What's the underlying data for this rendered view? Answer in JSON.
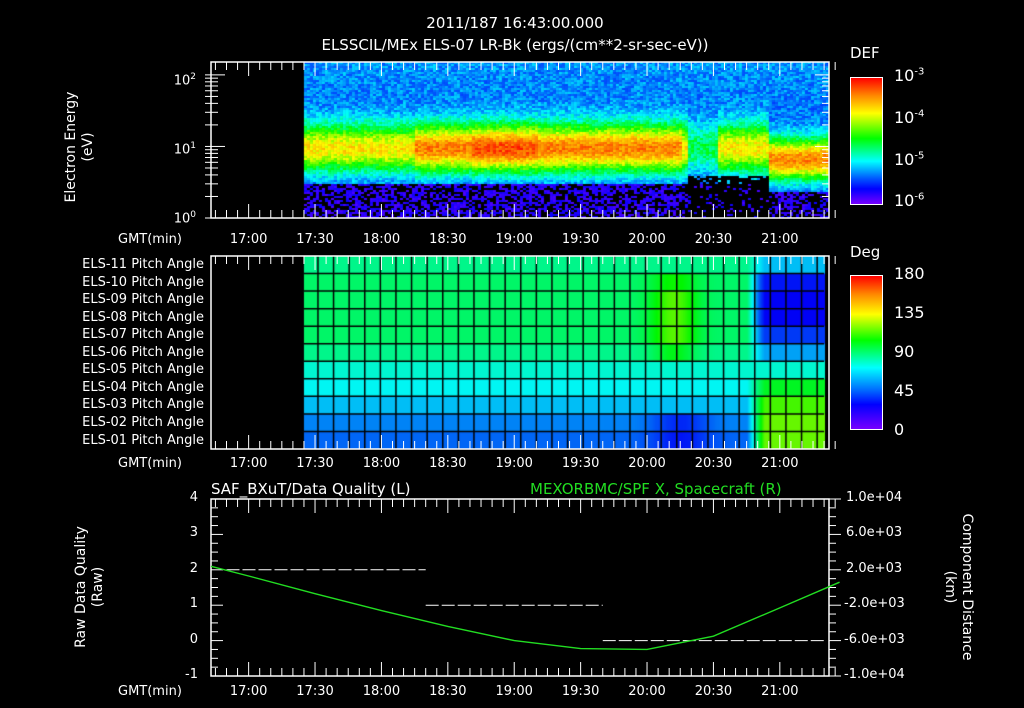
{
  "header": {
    "timestamp": "2011/187 16:43:00.000",
    "subtitle": "ELSSCIL/MEx ELS-07 LR-Bk  (ergs/(cm**2-sr-sec-eV))"
  },
  "panel1": {
    "ylabel_line1": "Electron Energy",
    "ylabel_line2": "(eV)",
    "yticks": [
      {
        "base": "10",
        "exp": "2"
      },
      {
        "base": "10",
        "exp": "1"
      },
      {
        "base": "10",
        "exp": "0"
      }
    ],
    "xaxis_label": "GMT(min)",
    "colorbar": {
      "title": "DEF",
      "ticks": [
        {
          "base": "10",
          "exp": "-3"
        },
        {
          "base": "10",
          "exp": "-4"
        },
        {
          "base": "10",
          "exp": "-5"
        },
        {
          "base": "10",
          "exp": "-6"
        }
      ]
    }
  },
  "panel2": {
    "rows": [
      "ELS-11 Pitch Angle",
      "ELS-10 Pitch Angle",
      "ELS-09 Pitch Angle",
      "ELS-08 Pitch Angle",
      "ELS-07 Pitch Angle",
      "ELS-06 Pitch Angle",
      "ELS-05 Pitch Angle",
      "ELS-04 Pitch Angle",
      "ELS-03 Pitch Angle",
      "ELS-02 Pitch Angle",
      "ELS-01 Pitch Angle"
    ],
    "xaxis_label": "GMT(min)",
    "colorbar": {
      "title": "Deg",
      "ticks": [
        "180",
        "135",
        "90",
        "45",
        "0"
      ]
    }
  },
  "panel3": {
    "title_left": "SAF_BXuT/Data Quality (L)",
    "title_right": "MEXORBMC/SPF X, Spacecraft (R)",
    "ylabel_left_line1": "Raw Data Quality",
    "ylabel_left_line2": "(Raw)",
    "ylabel_right_line1": "Component Distance",
    "ylabel_right_line2": "(km)",
    "yticks_left": [
      "4",
      "3",
      "2",
      "1",
      "0",
      "-1"
    ],
    "yticks_right": [
      "1.0e+04",
      "6.0e+03",
      "2.0e+03",
      "-2.0e+03",
      "-6.0e+03",
      "-1.0e+04"
    ],
    "xaxis_label": "GMT(min)"
  },
  "xticks": [
    "17:00",
    "17:30",
    "18:00",
    "18:30",
    "19:00",
    "19:30",
    "20:00",
    "20:30",
    "21:00"
  ],
  "colors": {
    "frame": "#ffffff",
    "right_series": "#22dd22",
    "background": "#000000"
  },
  "chart_data": [
    {
      "type": "heatmap",
      "title": "ELSSCIL/MEx ELS-07 LR-Bk  (ergs/(cm**2-sr-sec-eV))",
      "xlabel": "GMT(min)",
      "ylabel": "Electron Energy (eV)",
      "yscale": "log",
      "ylim": [
        1,
        150
      ],
      "xlim": [
        "16:43",
        "21:27"
      ],
      "x_ticks": [
        "17:00",
        "17:30",
        "18:00",
        "18:30",
        "19:00",
        "19:30",
        "20:00",
        "20:30",
        "21:00"
      ],
      "colorbar": {
        "label": "DEF",
        "scale": "log",
        "range": [
          1e-06,
          0.001
        ]
      },
      "data_start": "17:25",
      "notes": "Peak flux (~1e-4) band between ~5-30 eV from 18:15-20:15; gap near 20:20-20:30; enhanced band 4-20 eV after 20:55"
    },
    {
      "type": "heatmap",
      "title": "Pitch Angle",
      "xlabel": "GMT(min)",
      "categories": [
        "ELS-11",
        "ELS-10",
        "ELS-09",
        "ELS-08",
        "ELS-07",
        "ELS-06",
        "ELS-05",
        "ELS-04",
        "ELS-03",
        "ELS-02",
        "ELS-01"
      ],
      "colorbar": {
        "label": "Deg",
        "range": [
          0,
          180
        ]
      },
      "xlim": [
        "16:43",
        "21:27"
      ],
      "data_start": "17:25",
      "data_end": "21:20",
      "row_values_typical": [
        95,
        100,
        100,
        100,
        100,
        95,
        85,
        80,
        70,
        60,
        55
      ],
      "notes": "ELS-08/09 reach ~125 deg near 20:10; ELS-09..11 drop to ~30 deg after 20:50; ELS-01..03 rise to ~130 deg after 20:55; ELS-01/02 dip to ~40 deg near 20:15"
    },
    {
      "type": "line",
      "title_left": "SAF_BXuT/Data Quality (L)",
      "title_right": "MEXORBMC/SPF X, Spacecraft (R)",
      "xlabel": "GMT(min)",
      "ylabel_left": "Raw Data Quality (Raw)",
      "ylabel_right": "Component Distance (km)",
      "ylim_left": [
        -1,
        4
      ],
      "ylim_right": [
        -10000,
        10000
      ],
      "series": [
        {
          "name": "SAF_BXuT/Data Quality",
          "axis": "left",
          "x": [
            "16:50",
            "18:20",
            "18:20",
            "19:40",
            "19:40",
            "21:20"
          ],
          "values": [
            2,
            2,
            1,
            1,
            0,
            0
          ]
        },
        {
          "name": "MEXORBMC/SPF X, Spacecraft",
          "axis": "right",
          "x": [
            "16:43",
            "17:00",
            "17:30",
            "18:00",
            "18:30",
            "19:00",
            "19:30",
            "20:00",
            "20:30",
            "21:00",
            "21:27"
          ],
          "values": [
            2400,
            1300,
            -700,
            -2600,
            -4400,
            -6000,
            -6900,
            -7000,
            -5500,
            -2300,
            600
          ]
        }
      ]
    }
  ]
}
